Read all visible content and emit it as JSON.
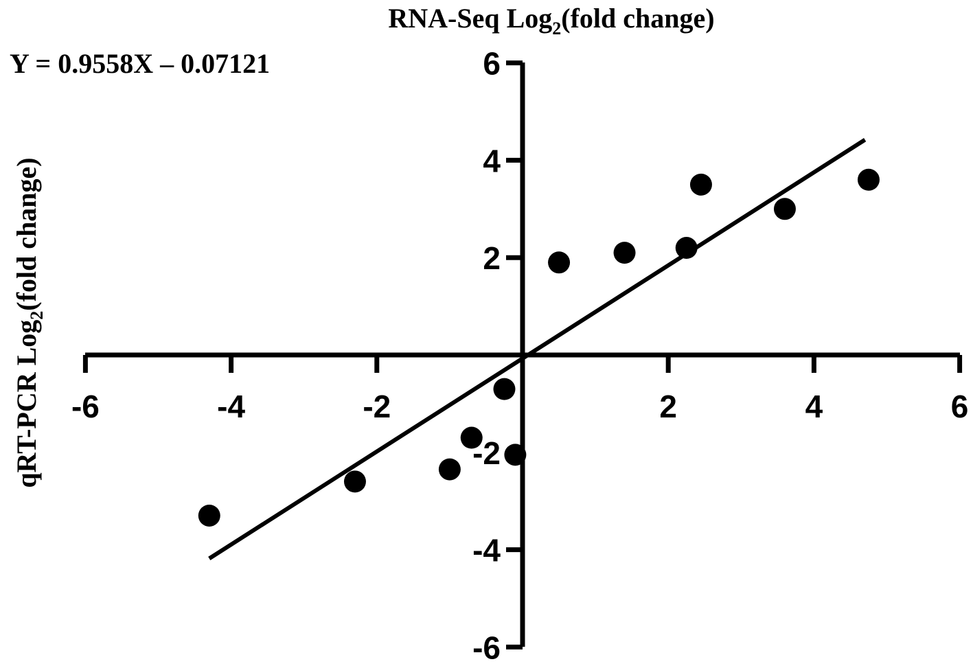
{
  "chart_data": {
    "type": "scatter",
    "title": "",
    "xlabel_main": "RNA-Seq Log",
    "xlabel_sub": "2",
    "xlabel_tail": "(fold change)",
    "ylabel_main": "qRT-PCR Log",
    "ylabel_sub": "2",
    "ylabel_tail": "(fold change)",
    "equation": "Y = 0.9558X – 0.07121",
    "xlim": [
      -6,
      6
    ],
    "ylim": [
      -6,
      6
    ],
    "x_ticks": [
      -6,
      -4,
      -2,
      2,
      4,
      6
    ],
    "y_ticks": [
      6,
      4,
      2,
      -2,
      -4,
      -6
    ],
    "x_tick_labels": [
      "-6",
      "-4",
      "-2",
      "2",
      "4",
      "6"
    ],
    "y_tick_labels": [
      "6",
      "4",
      "2",
      "-2",
      "-4",
      "-6"
    ],
    "points": [
      {
        "x": -4.3,
        "y": -3.3
      },
      {
        "x": -2.3,
        "y": -2.6
      },
      {
        "x": -1.0,
        "y": -2.35
      },
      {
        "x": -0.7,
        "y": -1.7
      },
      {
        "x": -0.25,
        "y": -0.7
      },
      {
        "x": -0.1,
        "y": -2.05
      },
      {
        "x": 0.5,
        "y": 1.9
      },
      {
        "x": 1.4,
        "y": 2.1
      },
      {
        "x": 2.25,
        "y": 2.2
      },
      {
        "x": 2.45,
        "y": 3.5
      },
      {
        "x": 3.6,
        "y": 3.0
      },
      {
        "x": 4.75,
        "y": 3.6
      }
    ],
    "fit": {
      "slope": 0.9558,
      "intercept": -0.07121,
      "x_range": [
        -4.3,
        4.7
      ]
    },
    "grid": false,
    "legend": "none"
  }
}
